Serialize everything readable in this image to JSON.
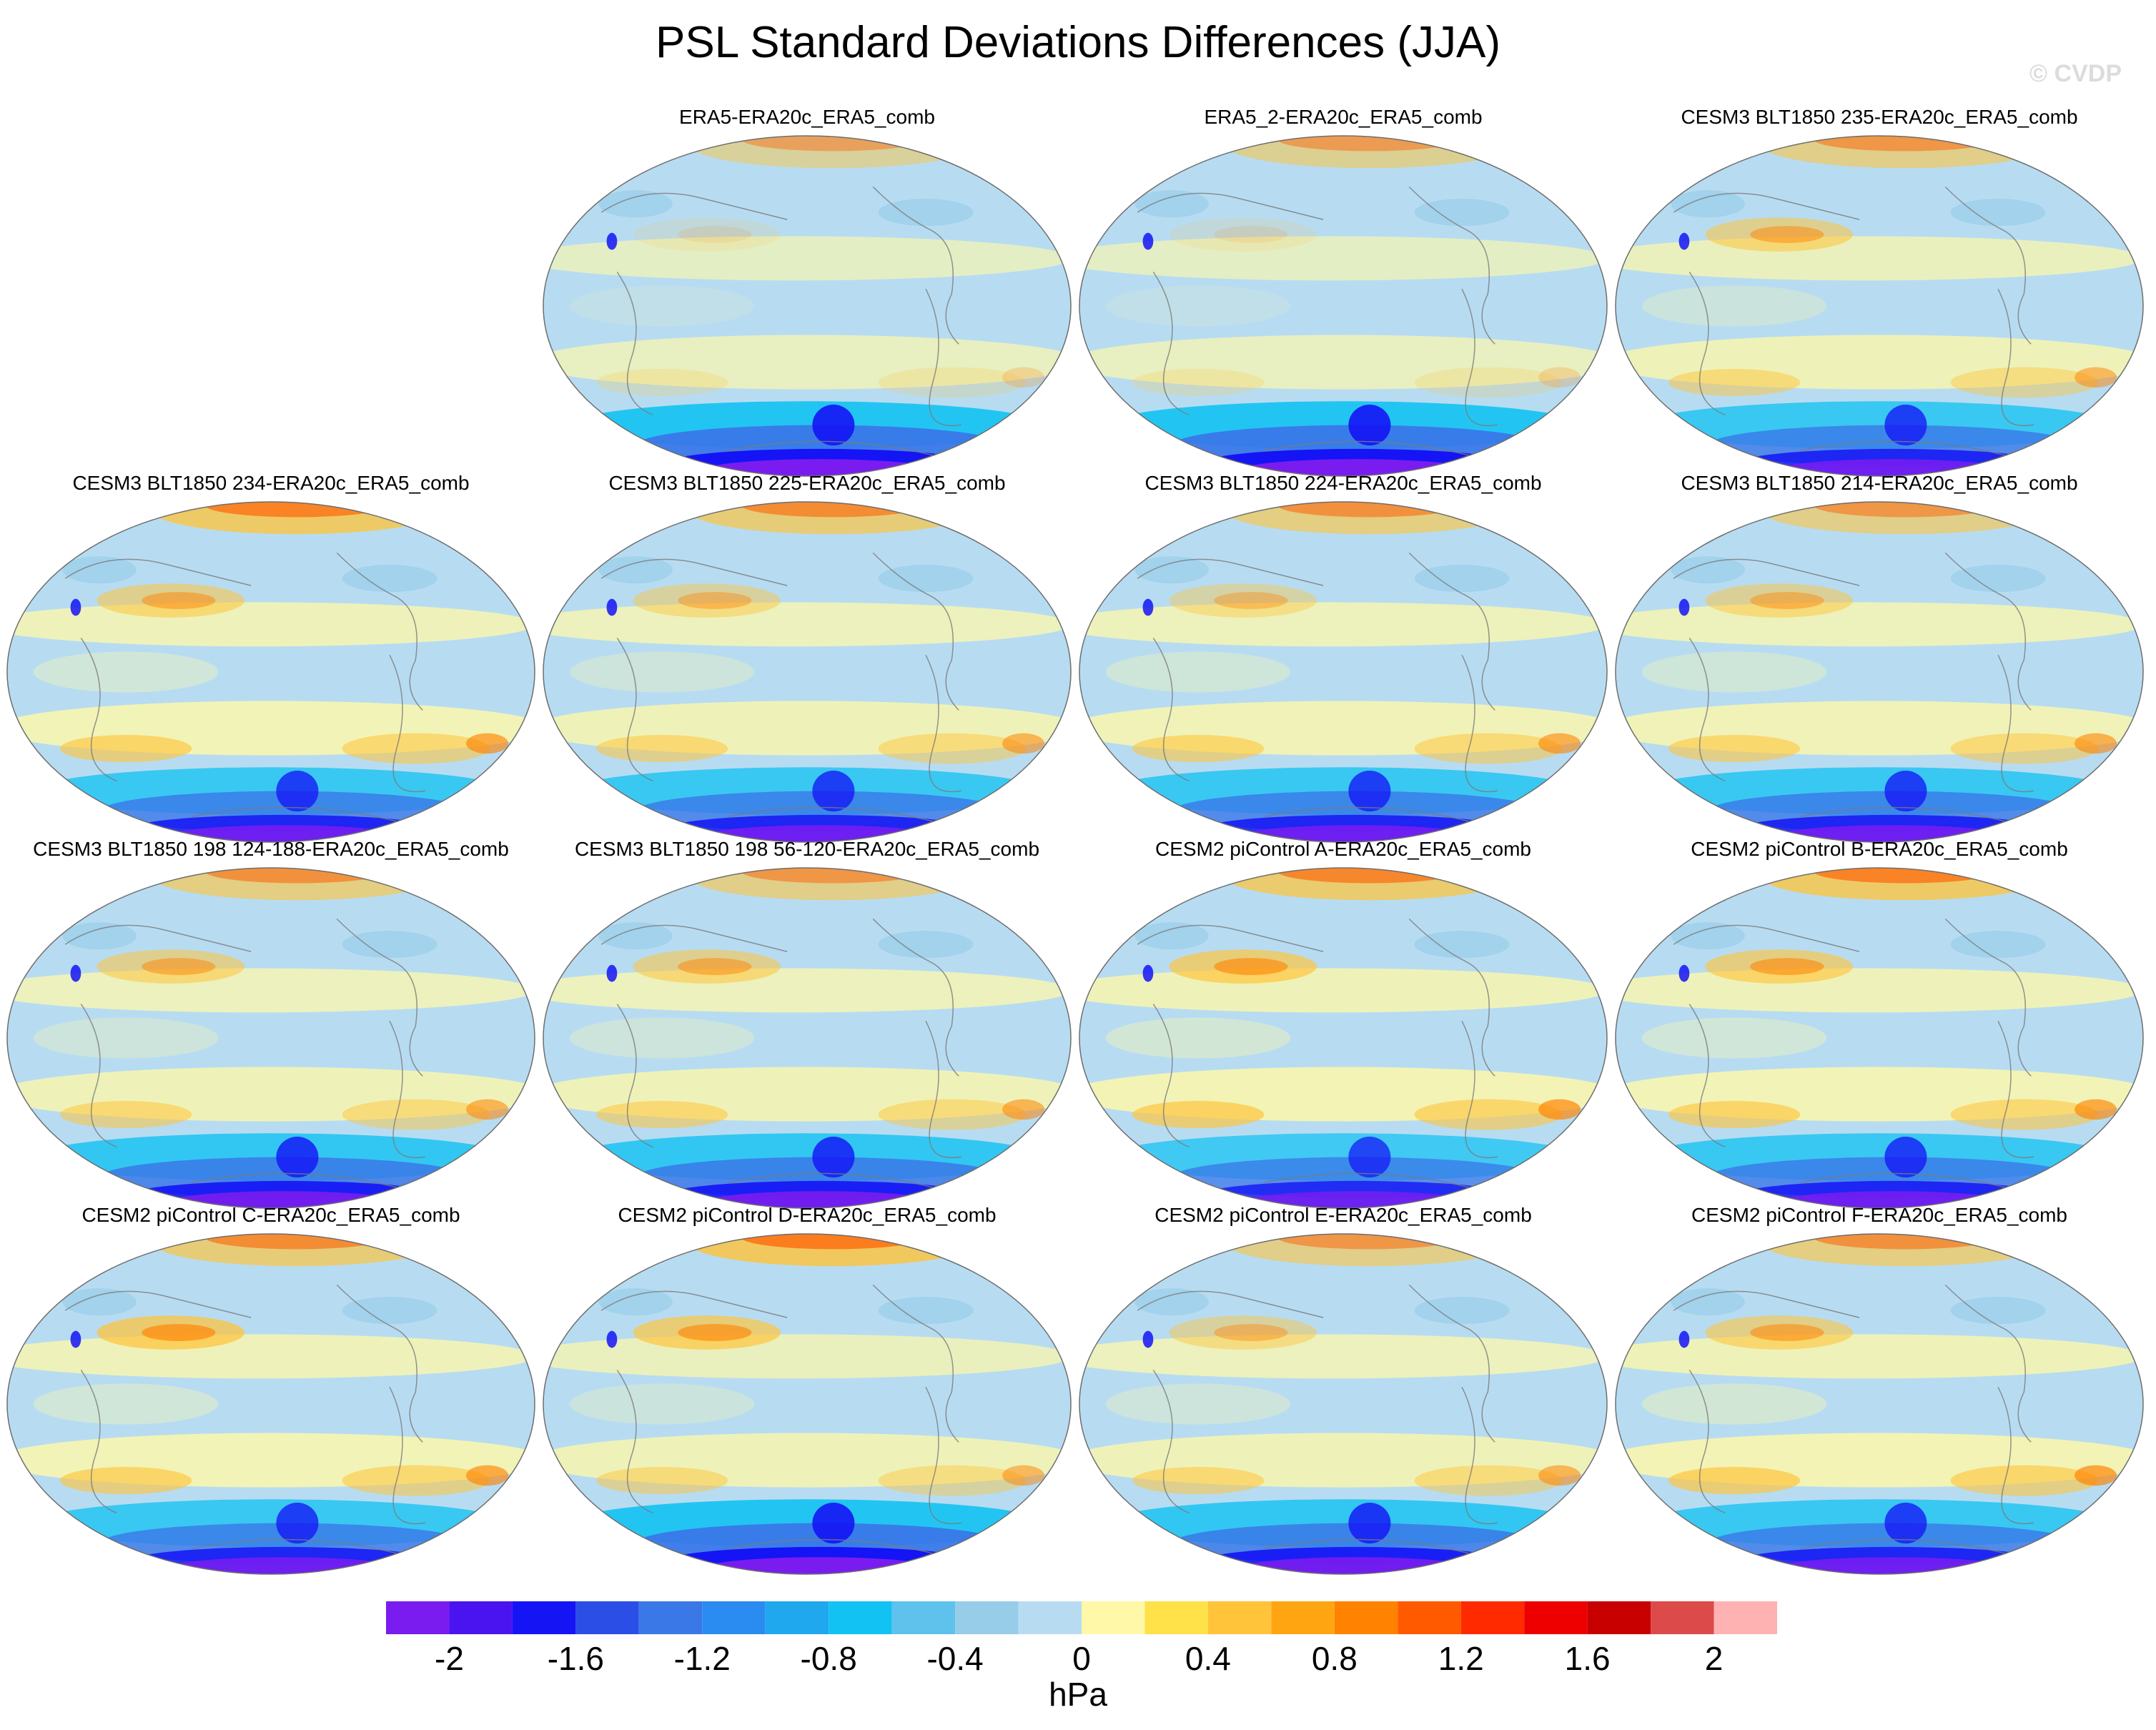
{
  "figure": {
    "title": "PSL Standard Deviations Differences (JJA)",
    "watermark": "© CVDP",
    "units": "hPa"
  },
  "palette": {
    "ocean_base": "#b7dcf2",
    "coast": "#7a7a7a",
    "outline": "#6e6e6e"
  },
  "colorbar": {
    "colors": [
      "#7a1cf0",
      "#4a14f0",
      "#1414f5",
      "#2b4ee6",
      "#3a78e8",
      "#2a8cf0",
      "#20a8ee",
      "#12c2f2",
      "#5ec2ec",
      "#98cdea",
      "#b7dcf2",
      "#fff8a8",
      "#ffe14a",
      "#ffc43a",
      "#ffa512",
      "#ff8200",
      "#ff5a00",
      "#ff2a00",
      "#ee0000",
      "#c80000",
      "#dc4a4a",
      "#ffb2b2"
    ],
    "tick_labels": [
      "-2",
      "-1.6",
      "-1.2",
      "-0.8",
      "-0.4",
      "0",
      "0.4",
      "0.8",
      "1.2",
      "1.6",
      "2"
    ]
  },
  "panels": [
    {
      "label": "ERA5-ERA20c_ERA5_comb",
      "south_intensity": 1.0,
      "north_warm": 0.5,
      "subtrop_warm": 0.25,
      "np_warm": 0.15
    },
    {
      "label": "ERA5_2-ERA20c_ERA5_comb",
      "south_intensity": 1.0,
      "north_warm": 0.55,
      "subtrop_warm": 0.25,
      "np_warm": 0.15
    },
    {
      "label": "CESM3 BLT1850 235-ERA20c_ERA5_comb",
      "south_intensity": 0.85,
      "north_warm": 0.6,
      "subtrop_warm": 0.55,
      "np_warm": 0.6
    },
    {
      "label": "CESM3 BLT1850 234-ERA20c_ERA5_comb",
      "south_intensity": 0.85,
      "north_warm": 0.8,
      "subtrop_warm": 0.7,
      "np_warm": 0.6
    },
    {
      "label": "CESM3 BLT1850 225-ERA20c_ERA5_comb",
      "south_intensity": 0.85,
      "north_warm": 0.7,
      "subtrop_warm": 0.6,
      "np_warm": 0.5
    },
    {
      "label": "CESM3 BLT1850 224-ERA20c_ERA5_comb",
      "south_intensity": 0.85,
      "north_warm": 0.65,
      "subtrop_warm": 0.65,
      "np_warm": 0.45
    },
    {
      "label": "CESM3 BLT1850 214-ERA20c_ERA5_comb",
      "south_intensity": 0.85,
      "north_warm": 0.6,
      "subtrop_warm": 0.65,
      "np_warm": 0.55
    },
    {
      "label": "CESM3 BLT1850 198 124-188-ERA20c_ERA5_comb",
      "south_intensity": 0.9,
      "north_warm": 0.65,
      "subtrop_warm": 0.6,
      "np_warm": 0.6
    },
    {
      "label": "CESM3 BLT1850 198 56-120-ERA20c_ERA5_comb",
      "south_intensity": 0.9,
      "north_warm": 0.6,
      "subtrop_warm": 0.6,
      "np_warm": 0.6
    },
    {
      "label": "CESM2 piControl A-ERA20c_ERA5_comb",
      "south_intensity": 0.8,
      "north_warm": 0.75,
      "subtrop_warm": 0.75,
      "np_warm": 0.75
    },
    {
      "label": "CESM2 piControl B-ERA20c_ERA5_comb",
      "south_intensity": 0.85,
      "north_warm": 0.8,
      "subtrop_warm": 0.7,
      "np_warm": 0.7
    },
    {
      "label": "CESM2 piControl C-ERA20c_ERA5_comb",
      "south_intensity": 0.85,
      "north_warm": 0.7,
      "subtrop_warm": 0.7,
      "np_warm": 0.8
    },
    {
      "label": "CESM2 piControl D-ERA20c_ERA5_comb",
      "south_intensity": 1.0,
      "north_warm": 0.85,
      "subtrop_warm": 0.55,
      "np_warm": 0.75
    },
    {
      "label": "CESM2 piControl E-ERA20c_ERA5_comb",
      "south_intensity": 0.9,
      "north_warm": 0.6,
      "subtrop_warm": 0.6,
      "np_warm": 0.5
    },
    {
      "label": "CESM2 piControl F-ERA20c_ERA5_comb",
      "south_intensity": 0.85,
      "north_warm": 0.65,
      "subtrop_warm": 0.75,
      "np_warm": 0.65
    }
  ]
}
